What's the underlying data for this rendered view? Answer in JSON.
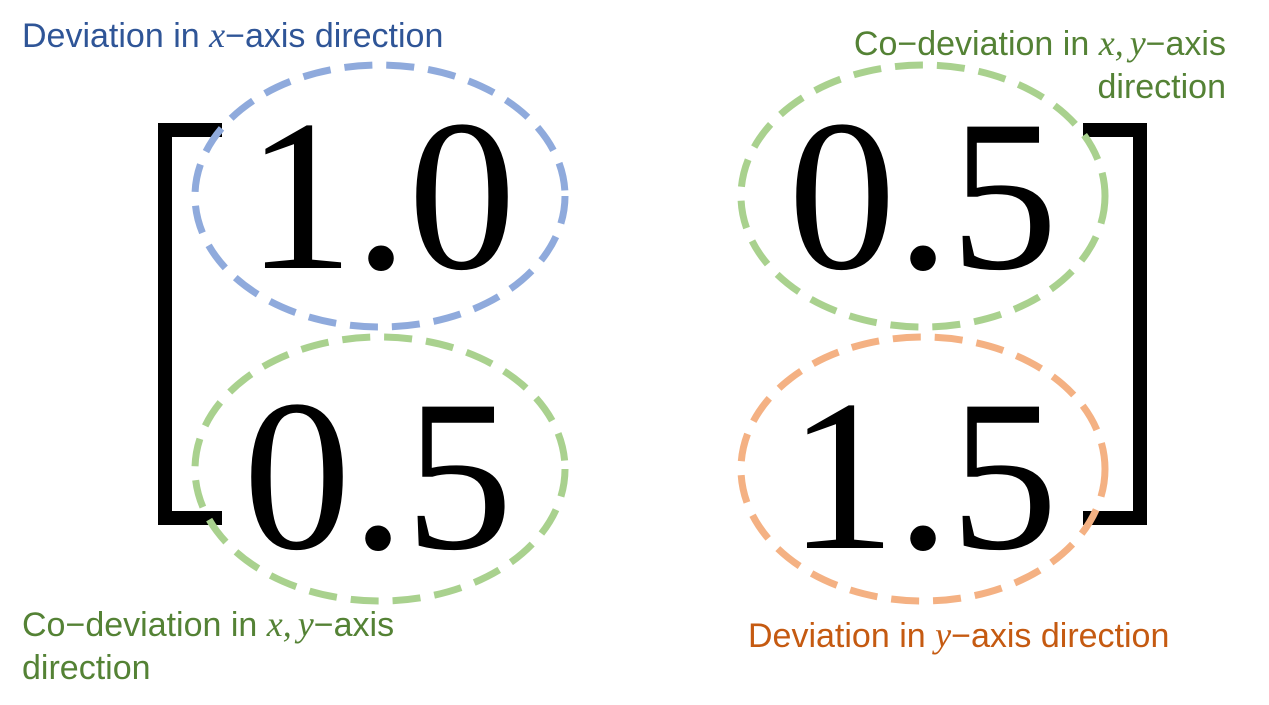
{
  "matrix": {
    "a11": "1.0",
    "a12": "0.5",
    "a21": "0.5",
    "a22": "1.5"
  },
  "colors": {
    "blue_text": "#2f5597",
    "green_text": "#548235",
    "orange_text": "#c55a11",
    "blue_ellipse": "#8faadc",
    "green_ellipse": "#a9d18e",
    "orange_ellipse": "#f4b183"
  },
  "labels": {
    "top_left": {
      "prefix": "Deviation in ",
      "var": "x",
      "suffix": "−axis direction"
    },
    "top_right": {
      "prefix": "Co−deviation in ",
      "var1": "x",
      "comma": ",",
      "var2": "y",
      "suffix": "−axis",
      "line2": "direction"
    },
    "bottom_left": {
      "prefix": "Co−deviation in ",
      "var1": "x",
      "comma": ",",
      "var2": "y",
      "suffix": "−axis",
      "line2": "direction"
    },
    "bottom_right": {
      "prefix": "Deviation in ",
      "var": "y",
      "suffix": "−axis direction"
    }
  }
}
